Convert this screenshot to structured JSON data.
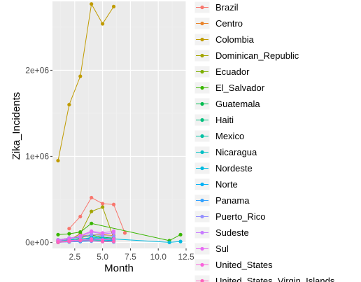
{
  "chart_data": {
    "type": "line",
    "title": "",
    "xlabel": "Month",
    "ylabel": "Zika_Incidents",
    "xlim": [
      0.5,
      12.5
    ],
    "ylim": [
      -70000,
      2800000
    ],
    "x_ticks": [
      {
        "value": 2.5,
        "label": "2.5"
      },
      {
        "value": 5.0,
        "label": "5.0"
      },
      {
        "value": 7.5,
        "label": "7.5"
      },
      {
        "value": 10.0,
        "label": "10.0"
      },
      {
        "value": 12.5,
        "label": "12.5"
      }
    ],
    "y_ticks": [
      {
        "value": 0,
        "label": "0e+00"
      },
      {
        "value": 1000000,
        "label": "1e+06"
      },
      {
        "value": 2000000,
        "label": "2e+06"
      }
    ],
    "grid": true,
    "legend_position": "right",
    "series": [
      {
        "name": "Brazil",
        "color": "#F8766D",
        "points": [
          [
            2,
            160000
          ],
          [
            3,
            300000
          ],
          [
            4,
            520000
          ],
          [
            5,
            450000
          ],
          [
            6,
            440000
          ],
          [
            7,
            110000
          ]
        ]
      },
      {
        "name": "Centro",
        "color": "#E9842C",
        "points": [
          [
            1,
            20000
          ],
          [
            2,
            40000
          ],
          [
            3,
            70000
          ],
          [
            4,
            90000
          ],
          [
            5,
            90000
          ],
          [
            6,
            80000
          ]
        ]
      },
      {
        "name": "Colombia",
        "color": "#C09B00",
        "points": [
          [
            1,
            950000
          ],
          [
            2,
            1600000
          ],
          [
            3,
            1930000
          ],
          [
            4,
            2770000
          ],
          [
            5,
            2540000
          ],
          [
            6,
            2740000
          ]
        ]
      },
      {
        "name": "Dominican_Republic",
        "color": "#A3A500",
        "points": [
          [
            2,
            30000
          ],
          [
            3,
            100000
          ],
          [
            4,
            360000
          ],
          [
            5,
            410000
          ],
          [
            6,
            50000
          ]
        ]
      },
      {
        "name": "Ecuador",
        "color": "#7CAE00",
        "points": [
          [
            1,
            10000
          ],
          [
            2,
            20000
          ],
          [
            3,
            50000
          ],
          [
            4,
            90000
          ],
          [
            5,
            50000
          ],
          [
            6,
            40000
          ]
        ]
      },
      {
        "name": "El_Salvador",
        "color": "#39B600",
        "points": [
          [
            1,
            90000
          ],
          [
            2,
            100000
          ],
          [
            3,
            120000
          ],
          [
            4,
            220000
          ],
          [
            11,
            20000
          ],
          [
            12,
            90000
          ]
        ]
      },
      {
        "name": "Guatemala",
        "color": "#00BB4E",
        "points": [
          [
            1,
            30000
          ],
          [
            2,
            50000
          ],
          [
            3,
            60000
          ],
          [
            4,
            80000
          ],
          [
            5,
            60000
          ],
          [
            6,
            50000
          ]
        ]
      },
      {
        "name": "Haiti",
        "color": "#00BF7D",
        "points": [
          [
            1,
            20000
          ],
          [
            2,
            30000
          ],
          [
            3,
            40000
          ],
          [
            4,
            40000
          ],
          [
            5,
            30000
          ],
          [
            6,
            20000
          ]
        ]
      },
      {
        "name": "Mexico",
        "color": "#00C1A3",
        "points": [
          [
            1,
            0
          ],
          [
            2,
            10000
          ],
          [
            3,
            10000
          ],
          [
            4,
            20000
          ],
          [
            5,
            20000
          ],
          [
            6,
            10000
          ]
        ]
      },
      {
        "name": "Nicaragua",
        "color": "#00BFC4",
        "points": [
          [
            1,
            20000
          ],
          [
            2,
            30000
          ],
          [
            3,
            40000
          ],
          [
            4,
            50000
          ],
          [
            5,
            40000
          ],
          [
            6,
            30000
          ]
        ]
      },
      {
        "name": "Nordeste",
        "color": "#00BAE0",
        "points": [
          [
            1,
            10000
          ],
          [
            2,
            20000
          ],
          [
            3,
            30000
          ],
          [
            4,
            60000
          ],
          [
            5,
            50000
          ],
          [
            6,
            40000
          ],
          [
            11,
            0
          ],
          [
            12,
            10000
          ]
        ]
      },
      {
        "name": "Norte",
        "color": "#00B0F6",
        "points": [
          [
            1,
            0
          ],
          [
            2,
            10000
          ],
          [
            3,
            20000
          ],
          [
            4,
            30000
          ],
          [
            5,
            30000
          ],
          [
            6,
            20000
          ]
        ]
      },
      {
        "name": "Panama",
        "color": "#35A2FF",
        "points": [
          [
            1,
            0
          ],
          [
            2,
            5000
          ],
          [
            3,
            10000
          ],
          [
            4,
            15000
          ],
          [
            5,
            10000
          ],
          [
            6,
            5000
          ]
        ]
      },
      {
        "name": "Puerto_Rico",
        "color": "#9590FF",
        "points": [
          [
            1,
            20000
          ],
          [
            2,
            40000
          ],
          [
            3,
            60000
          ],
          [
            4,
            90000
          ],
          [
            5,
            80000
          ],
          [
            6,
            70000
          ]
        ]
      },
      {
        "name": "Sudeste",
        "color": "#C77CFF",
        "points": [
          [
            1,
            30000
          ],
          [
            2,
            50000
          ],
          [
            3,
            70000
          ],
          [
            4,
            120000
          ],
          [
            5,
            100000
          ],
          [
            6,
            110000
          ]
        ]
      },
      {
        "name": "Sul",
        "color": "#E76BF3",
        "points": [
          [
            1,
            20000
          ],
          [
            2,
            40000
          ],
          [
            3,
            80000
          ],
          [
            4,
            130000
          ],
          [
            5,
            110000
          ],
          [
            6,
            130000
          ]
        ]
      },
      {
        "name": "United_States",
        "color": "#FA62DB",
        "points": [
          [
            1,
            10000
          ],
          [
            2,
            20000
          ],
          [
            3,
            30000
          ],
          [
            4,
            40000
          ],
          [
            5,
            30000
          ],
          [
            6,
            40000
          ]
        ]
      },
      {
        "name": "United_States_Virgin_Islands",
        "color": "#FF62BC",
        "points": [
          [
            1,
            0
          ],
          [
            2,
            10000
          ],
          [
            3,
            20000
          ],
          [
            4,
            20000
          ],
          [
            5,
            10000
          ],
          [
            6,
            10000
          ]
        ]
      }
    ]
  }
}
